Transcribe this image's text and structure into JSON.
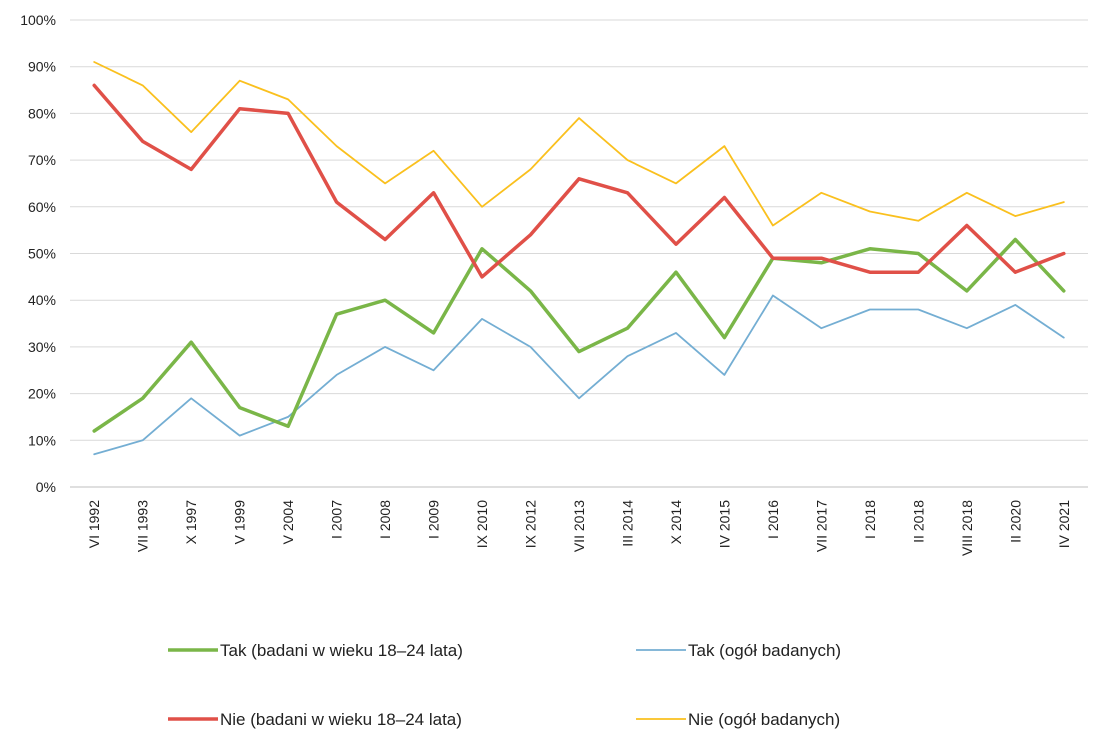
{
  "chart_data": {
    "type": "line",
    "title": "",
    "xlabel": "",
    "ylabel": "",
    "ylim": [
      0,
      100
    ],
    "y_ticks": [
      "0%",
      "10%",
      "20%",
      "30%",
      "40%",
      "50%",
      "60%",
      "70%",
      "80%",
      "90%",
      "100%"
    ],
    "grid": "horizontal",
    "legend_position": "bottom",
    "categories": [
      "VI 1992",
      "VII 1993",
      "X 1997",
      "V 1999",
      "V 2004",
      "I 2007",
      "I 2008",
      "I 2009",
      "IX 2010",
      "IX 2012",
      "VII 2013",
      "III 2014",
      "X 2014",
      "IV 2015",
      "I 2016",
      "VII 2017",
      "I 2018",
      "II 2018",
      "VIII 2018",
      "II 2020",
      "IV 2021"
    ],
    "series": [
      {
        "name": "Tak (badani w wieku 18–24 lata)",
        "color": "#7ab648",
        "values": [
          12,
          19,
          31,
          17,
          13,
          37,
          40,
          33,
          51,
          42,
          29,
          34,
          46,
          32,
          49,
          48,
          51,
          50,
          42,
          53,
          42
        ]
      },
      {
        "name": "Tak (ogół badanych)",
        "color": "#74aed3",
        "values": [
          7,
          10,
          19,
          11,
          15,
          24,
          30,
          25,
          36,
          30,
          19,
          28,
          33,
          24,
          41,
          34,
          38,
          38,
          34,
          39,
          32
        ]
      },
      {
        "name": "Nie (badani w wieku 18–24 lata)",
        "color": "#e05048",
        "values": [
          86,
          74,
          68,
          81,
          80,
          61,
          53,
          63,
          45,
          54,
          66,
          63,
          52,
          62,
          49,
          49,
          46,
          46,
          56,
          46,
          50
        ]
      },
      {
        "name": "Nie (ogół badanych)",
        "color": "#fac01e",
        "values": [
          91,
          86,
          76,
          87,
          83,
          73,
          65,
          72,
          60,
          68,
          79,
          70,
          65,
          73,
          56,
          63,
          59,
          57,
          63,
          58,
          61
        ]
      }
    ]
  }
}
